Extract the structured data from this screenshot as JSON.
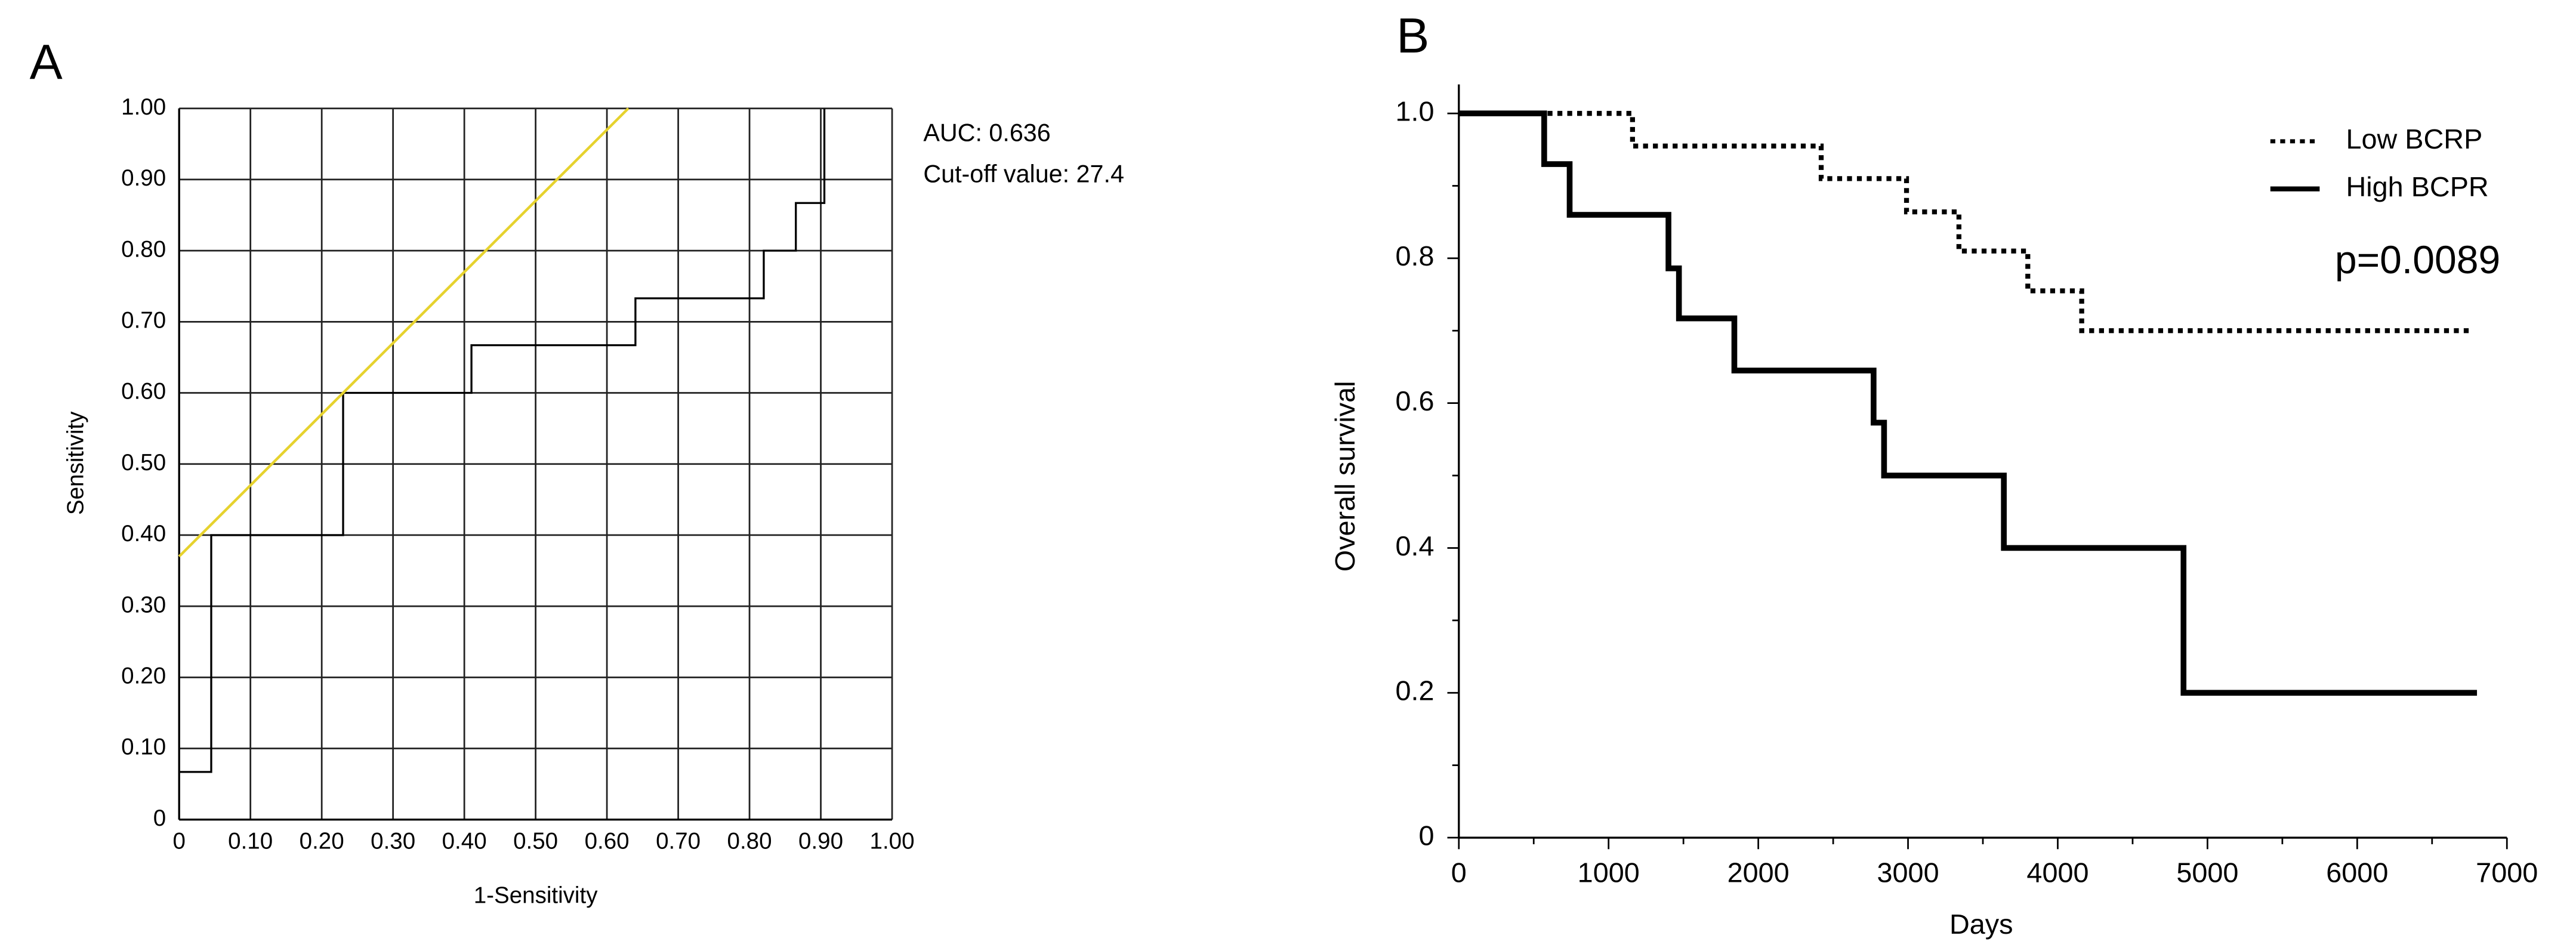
{
  "chart_data": [
    {
      "type": "line",
      "panel_label": "A",
      "xlabel": "1-Sensitivity",
      "ylabel": "Sensitivity",
      "annotations": [
        "AUC: 0.636",
        "Cut-off  value: 27.4"
      ],
      "xlim": [
        0,
        1
      ],
      "ylim": [
        0,
        1
      ],
      "grid": true,
      "xticks": [
        0,
        {
          "value": 0.1,
          "label": "0.10"
        },
        {
          "value": 0.2,
          "label": "0.20"
        },
        {
          "value": 0.3,
          "label": "0.30"
        },
        {
          "value": 0.4,
          "label": "0.40"
        },
        {
          "value": 0.5,
          "label": "0.50"
        },
        {
          "value": 0.6,
          "label": "0.60"
        },
        {
          "value": 0.7,
          "label": "0.70"
        },
        {
          "value": 0.8,
          "label": "0.80"
        },
        {
          "value": 0.9,
          "label": "0.90"
        },
        {
          "value": 1,
          "label": "1.00"
        }
      ],
      "yticks": [
        0,
        {
          "value": 0.1,
          "label": "0.10"
        },
        {
          "value": 0.2,
          "label": "0.20"
        },
        {
          "value": 0.3,
          "label": "0.30"
        },
        {
          "value": 0.4,
          "label": "0.40"
        },
        {
          "value": 0.5,
          "label": "0.50"
        },
        {
          "value": 0.6,
          "label": "0.60"
        },
        {
          "value": 0.7,
          "label": "0.70"
        },
        {
          "value": 0.8,
          "label": "0.80"
        },
        {
          "value": 0.9,
          "label": "0.90"
        },
        {
          "value": 1,
          "label": "1.00"
        }
      ],
      "series": [
        {
          "color": "#000000",
          "style": "solid",
          "width": 1.2,
          "x": [
            0,
            0.045,
            0.045,
            0.23,
            0.23,
            0.41,
            0.41,
            0.64,
            0.64,
            0.82,
            0.82,
            0.865,
            0.865,
            0.905,
            0.905
          ],
          "values": [
            0.067,
            0.067,
            0.4,
            0.4,
            0.6,
            0.6,
            0.667,
            0.667,
            0.733,
            0.733,
            0.8,
            0.8,
            0.867,
            0.867,
            1
          ]
        },
        {
          "color": "#e6d22e",
          "style": "solid",
          "width": 1.6,
          "x": [
            0,
            0.63
          ],
          "values": [
            0.37,
            1
          ]
        }
      ]
    },
    {
      "type": "line",
      "panel_label": "B",
      "xlabel": "Days",
      "ylabel": "Overall survival",
      "annotations": [
        "p=0.0089"
      ],
      "legend": "upper right",
      "grid": false,
      "xlim": [
        0,
        7000
      ],
      "ylim": [
        0,
        1.04
      ],
      "xticks": [
        0,
        1000,
        2000,
        3000,
        4000,
        5000,
        6000,
        7000
      ],
      "yticks": [
        0,
        0.2,
        0.4,
        0.6,
        0.8,
        {
          "value": 1,
          "label": "1.0"
        }
      ],
      "series": [
        {
          "name": "Low BCRP",
          "color": "#000000",
          "style": "dotted",
          "width": 3,
          "x": [
            0,
            1160,
            1160,
            2420,
            2420,
            2990,
            2990,
            3340,
            3340,
            3800,
            3800,
            4160,
            4160,
            6770
          ],
          "values": [
            1,
            1,
            0.955,
            0.955,
            0.91,
            0.91,
            0.864,
            0.864,
            0.81,
            0.81,
            0.755,
            0.755,
            0.7,
            0.7
          ]
        },
        {
          "name": "High BCPR",
          "color": "#000000",
          "style": "solid",
          "width": 3.5,
          "x": [
            0,
            570,
            570,
            740,
            740,
            1400,
            1400,
            1470,
            1470,
            1840,
            1840,
            2770,
            2770,
            2840,
            2840,
            3640,
            3640,
            4840,
            4840,
            6800
          ],
          "values": [
            1,
            1,
            0.93,
            0.93,
            0.86,
            0.86,
            0.786,
            0.786,
            0.717,
            0.717,
            0.645,
            0.645,
            0.573,
            0.573,
            0.5,
            0.5,
            0.4,
            0.4,
            0.2,
            0.2
          ]
        }
      ]
    }
  ]
}
